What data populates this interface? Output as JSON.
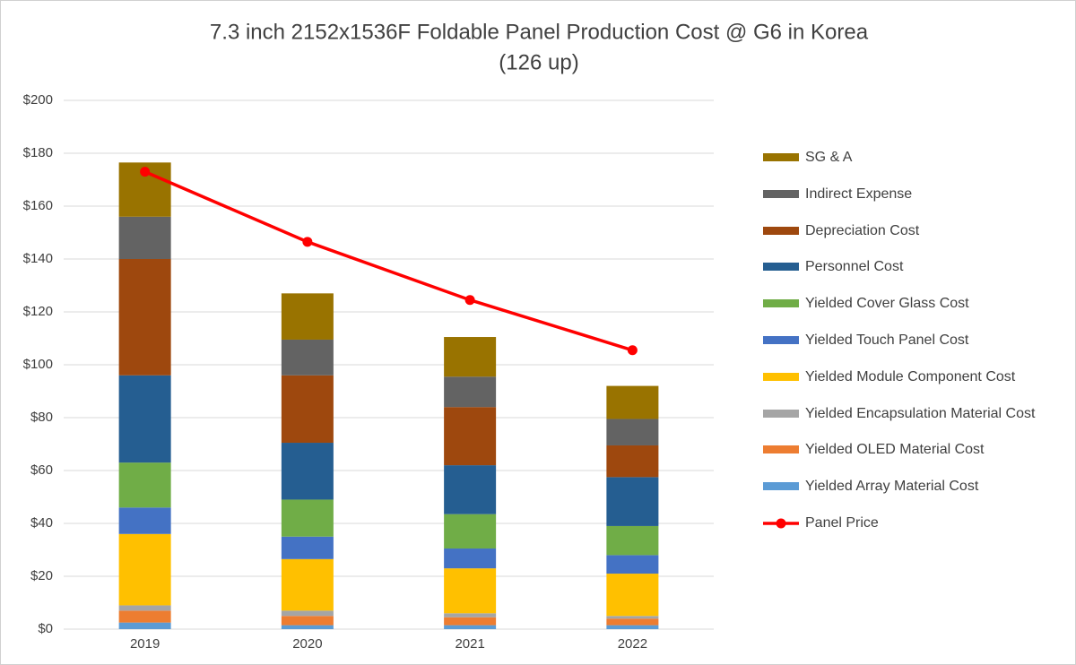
{
  "chart_data": {
    "type": "bar",
    "stacked": true,
    "title": "7.3 inch 2152x1536F  Foldable Panel Production Cost @ G6  in Korea",
    "subtitle": "(126 up)",
    "categories": [
      "2019",
      "2020",
      "2021",
      "2022"
    ],
    "series": [
      {
        "name": "Yielded Array Material Cost",
        "color": "#5b9bd5",
        "values": [
          2.5,
          1.5,
          1.5,
          1.5
        ]
      },
      {
        "name": "Yielded OLED Material Cost",
        "color": "#ed7d31",
        "values": [
          4.5,
          3.5,
          3,
          2.5
        ]
      },
      {
        "name": "Yielded Encapsulation Material Cost",
        "color": "#a5a5a5",
        "values": [
          2,
          2,
          1.5,
          1
        ]
      },
      {
        "name": "Yielded Module Component Cost",
        "color": "#ffc000",
        "values": [
          27,
          19.5,
          17,
          16
        ]
      },
      {
        "name": "Yielded Touch Panel Cost",
        "color": "#4472c4",
        "values": [
          10,
          8.5,
          7.5,
          7
        ]
      },
      {
        "name": "Yielded Cover Glass Cost",
        "color": "#70ad47",
        "values": [
          17,
          14,
          13,
          11
        ]
      },
      {
        "name": "Personnel Cost",
        "color": "#255e91",
        "values": [
          33,
          21.5,
          18.5,
          18.5
        ]
      },
      {
        "name": "Depreciation Cost",
        "color": "#9e480e",
        "values": [
          44,
          25.5,
          22,
          12
        ]
      },
      {
        "name": "Indirect Expense",
        "color": "#636363",
        "values": [
          16,
          13.5,
          11.5,
          10
        ]
      },
      {
        "name": "SG & A",
        "color": "#997300",
        "values": [
          20.5,
          17.5,
          15,
          12.5
        ]
      },
      {
        "name": "Panel Price",
        "color": "#ff0000",
        "type": "line",
        "values": [
          173,
          146.5,
          124.5,
          105.5
        ]
      }
    ],
    "ylim": [
      0,
      200
    ],
    "yticks": [
      {
        "value": 0,
        "label": "$0"
      },
      {
        "value": 20,
        "label": "$20"
      },
      {
        "value": 40,
        "label": "$40"
      },
      {
        "value": 60,
        "label": "$60"
      },
      {
        "value": 80,
        "label": "$80"
      },
      {
        "value": 100,
        "label": "$100"
      },
      {
        "value": 120,
        "label": "$120"
      },
      {
        "value": 140,
        "label": "$140"
      },
      {
        "value": 160,
        "label": "$160"
      },
      {
        "value": 180,
        "label": "$180"
      },
      {
        "value": 200,
        "label": "$200"
      }
    ],
    "grid": true,
    "legend": "right"
  }
}
